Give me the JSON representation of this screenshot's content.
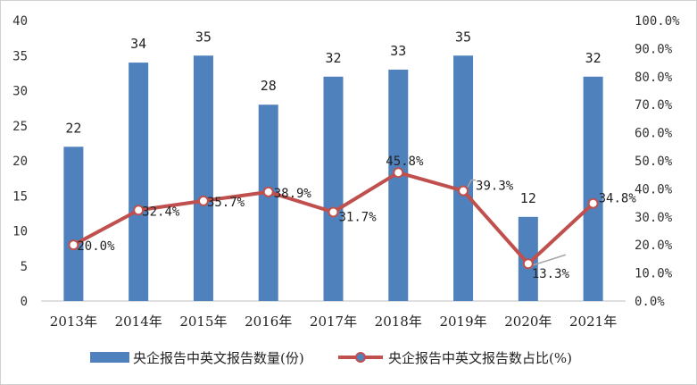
{
  "chart_data": {
    "type": "bar",
    "categories": [
      "2013年",
      "2014年",
      "2015年",
      "2016年",
      "2017年",
      "2018年",
      "2019年",
      "2020年",
      "2021年"
    ],
    "series": [
      {
        "name": "央企报告中英文报告数量(份)",
        "type": "bar",
        "axis": "left",
        "values": [
          22,
          34,
          35,
          28,
          32,
          33,
          35,
          12,
          32
        ],
        "labels": [
          "22",
          "34",
          "35",
          "28",
          "32",
          "33",
          "35",
          "12",
          "32"
        ],
        "color": "#4f81bd"
      },
      {
        "name": "央企报告中英文报告数占比(%)",
        "type": "line",
        "axis": "right",
        "values": [
          20.0,
          32.4,
          35.7,
          38.9,
          31.7,
          45.8,
          39.3,
          13.3,
          34.8
        ],
        "labels": [
          "20.0%",
          "32.4%",
          "35.7%",
          "38.9%",
          "31.7%",
          "45.8%",
          "39.3%",
          "13.3%",
          "34.8%"
        ],
        "color": "#c0504d"
      }
    ],
    "left_axis": {
      "min": 0,
      "max": 40,
      "step": 5,
      "ticks": [
        "0",
        "5",
        "10",
        "15",
        "20",
        "25",
        "30",
        "35",
        "40"
      ]
    },
    "right_axis": {
      "min": 0,
      "max": 100,
      "step": 10,
      "ticks": [
        "0.0%",
        "10.0%",
        "20.0%",
        "30.0%",
        "40.0%",
        "50.0%",
        "60.0%",
        "70.0%",
        "80.0%",
        "90.0%",
        "100.0%"
      ]
    },
    "grid": false,
    "legend_position": "bottom"
  }
}
